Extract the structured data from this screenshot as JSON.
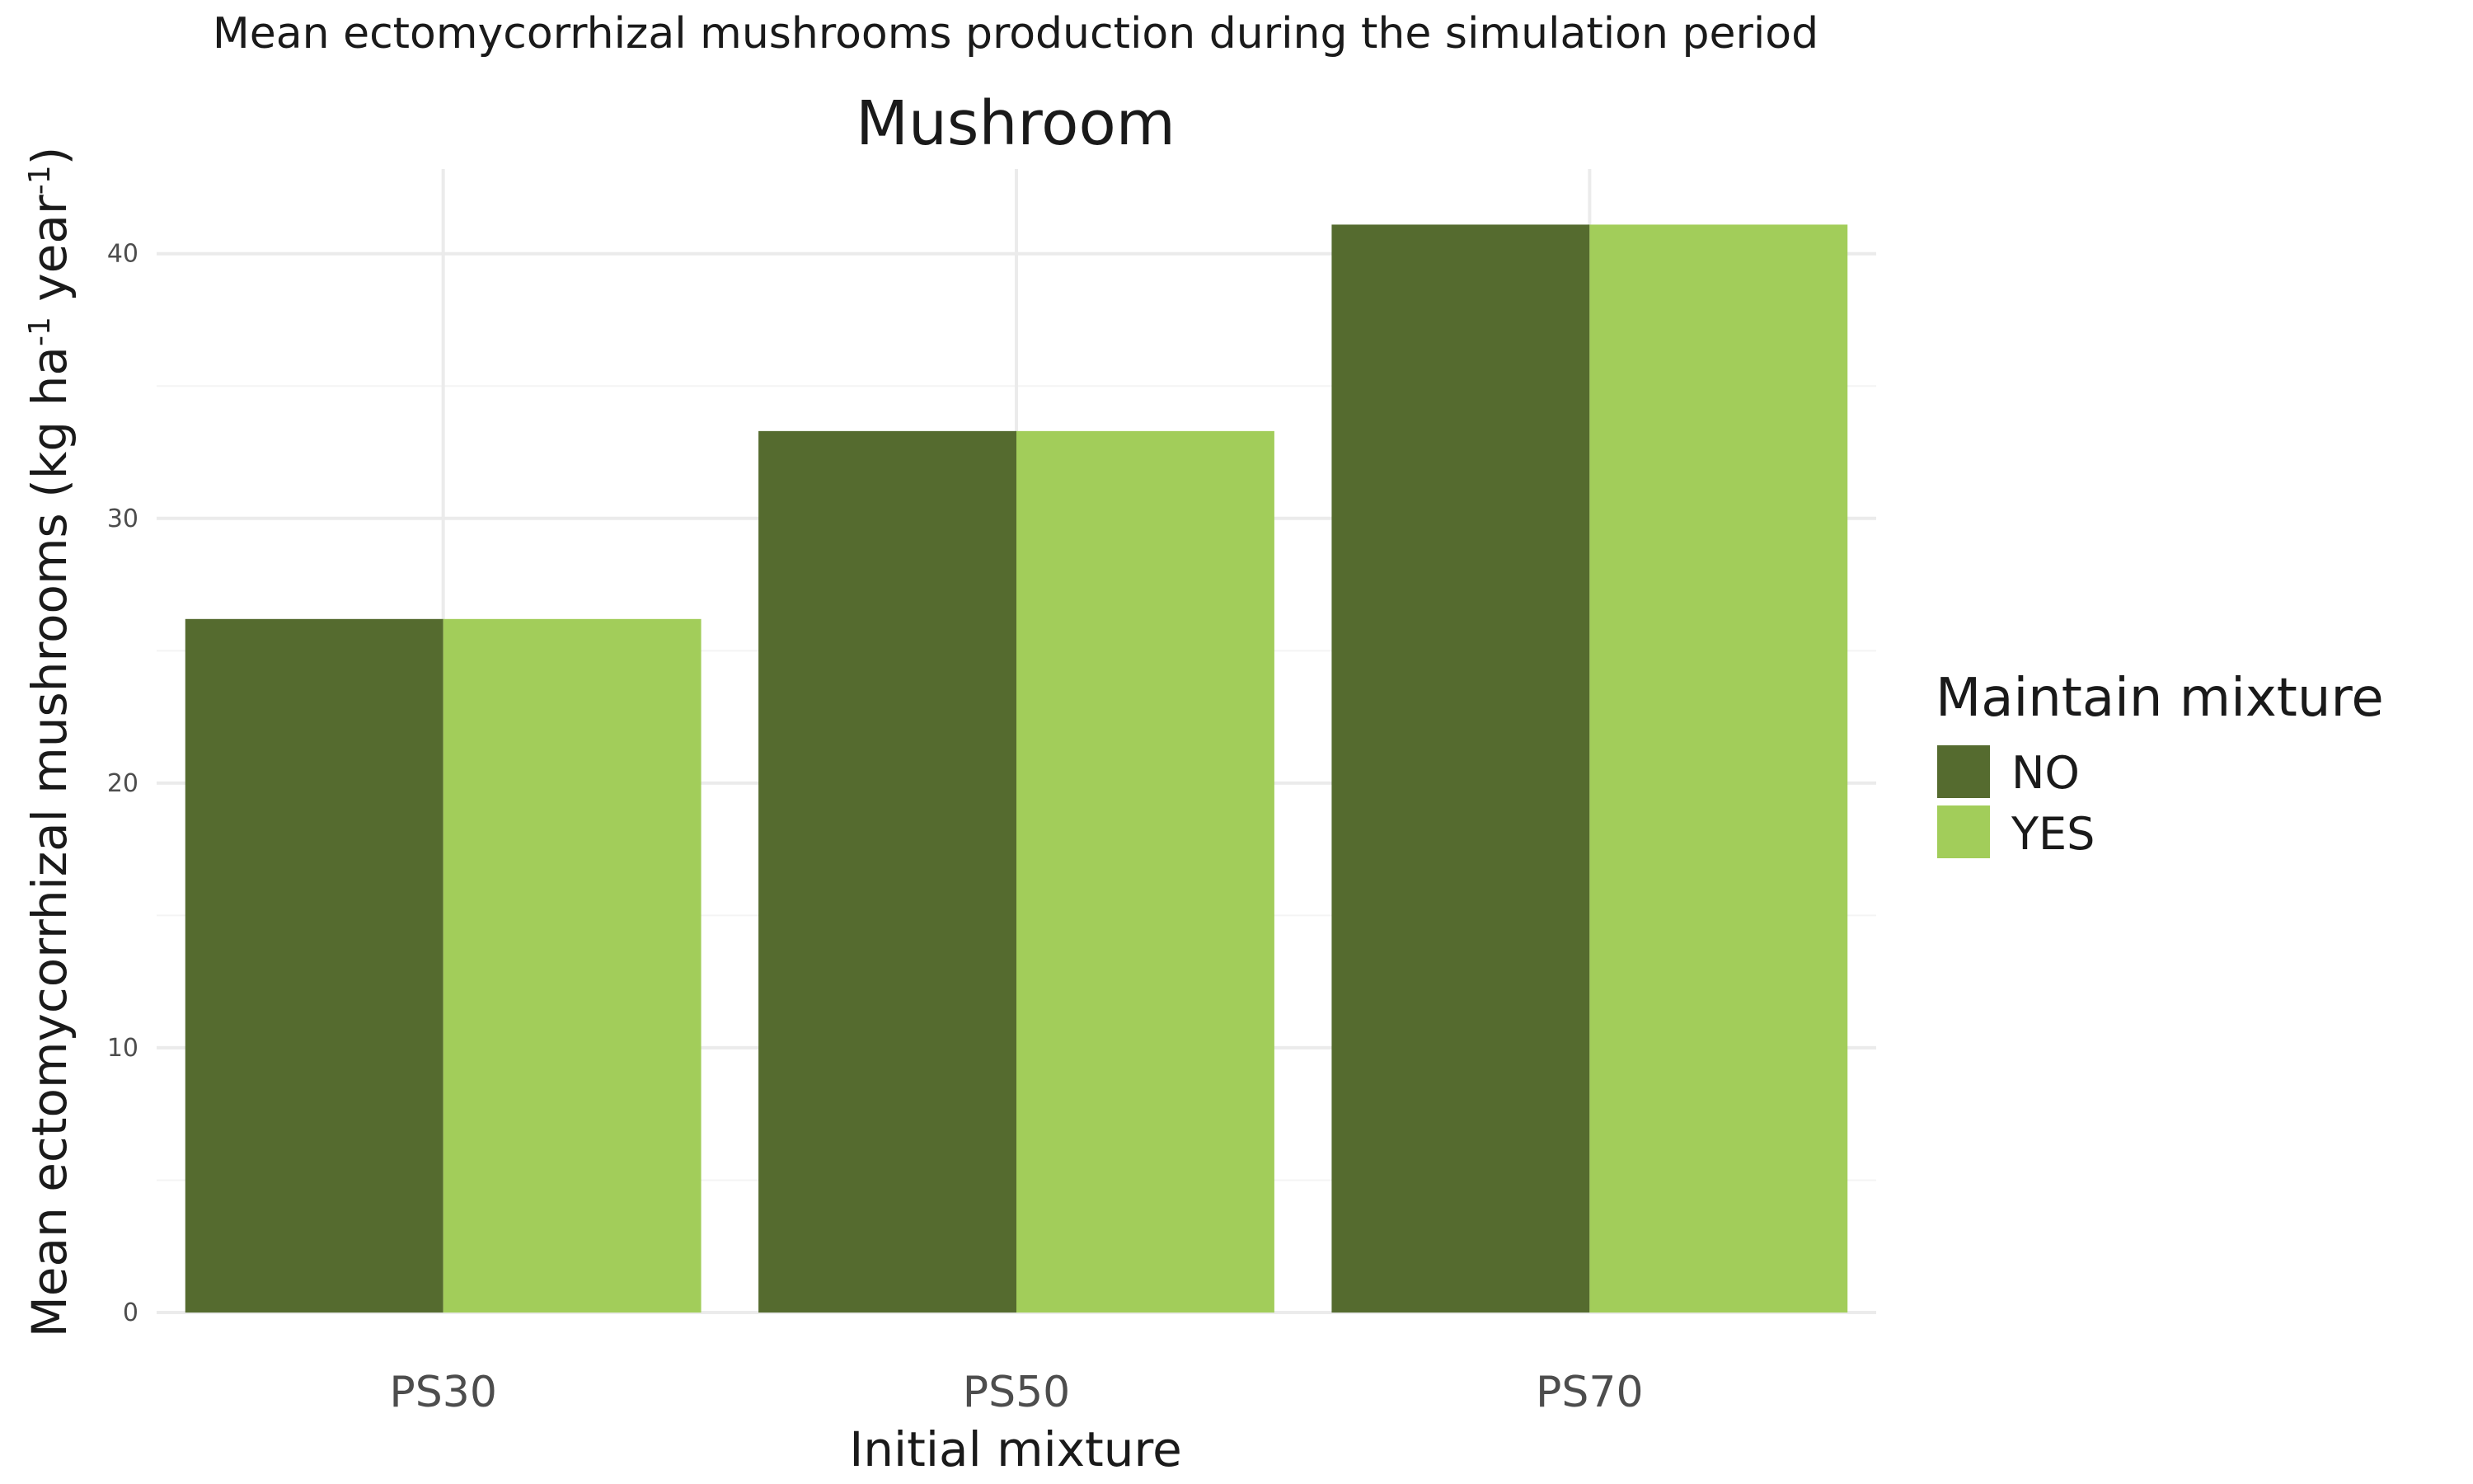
{
  "header": "Mean ectomycorrhizal mushrooms production during the simulation period",
  "colors": {
    "NO": "#556b2f",
    "YES": "#a2cd5a",
    "grid_major": "#ebebeb",
    "grid_minor": "#f4f4f4"
  },
  "chart_data": {
    "type": "bar",
    "title": "Mushroom",
    "xlabel": "Initial mixture",
    "ylabel": {
      "main": "Mean ectomycorrhizal mushrooms (kg ha",
      "sup1": "-1",
      "mid": " year",
      "sup2": "-1",
      "end": ")"
    },
    "categories": [
      "PS30",
      "PS50",
      "PS70"
    ],
    "series": [
      {
        "name": "NO",
        "values": [
          26.2,
          33.3,
          41.1
        ]
      },
      {
        "name": "YES",
        "values": [
          26.2,
          33.3,
          41.1
        ]
      }
    ],
    "ylim": [
      0,
      43.2
    ],
    "yticks": [
      0,
      10,
      20,
      30,
      40
    ],
    "grid": true,
    "legend": {
      "title": "Maintain mixture",
      "position": "right"
    }
  }
}
